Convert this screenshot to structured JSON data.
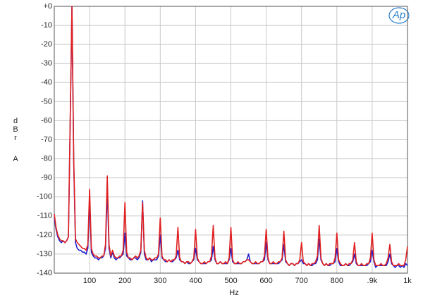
{
  "chart_data": {
    "type": "line",
    "x_label": "Hz",
    "y_label": "dBr A",
    "logo": "Ap",
    "xlim": [
      0,
      1000
    ],
    "ylim": [
      -140,
      0
    ],
    "grid": true,
    "xticks": [
      100,
      200,
      300,
      400,
      500,
      600,
      700,
      800,
      {
        "value": 900,
        "label": ".9k"
      },
      {
        "value": 1000,
        "label": "1k"
      }
    ],
    "yticks": [
      {
        "value": 0,
        "label": "+0"
      },
      -10,
      -20,
      -30,
      -40,
      -50,
      -60,
      -70,
      -80,
      -90,
      -100,
      -110,
      -120,
      -130,
      -140
    ],
    "x": [
      0,
      5,
      10,
      15,
      20,
      25,
      30,
      35,
      40,
      45,
      50,
      55,
      60,
      65,
      70,
      75,
      80,
      85,
      90,
      95,
      100,
      105,
      110,
      115,
      120,
      125,
      130,
      135,
      140,
      145,
      150,
      155,
      160,
      165,
      170,
      175,
      180,
      185,
      190,
      195,
      200,
      205,
      210,
      215,
      220,
      225,
      230,
      235,
      240,
      245,
      250,
      255,
      260,
      265,
      270,
      275,
      280,
      285,
      290,
      295,
      300,
      305,
      310,
      315,
      320,
      325,
      330,
      335,
      340,
      345,
      350,
      355,
      360,
      365,
      370,
      375,
      380,
      385,
      390,
      395,
      400,
      405,
      410,
      415,
      420,
      425,
      430,
      435,
      440,
      445,
      450,
      455,
      460,
      465,
      470,
      475,
      480,
      485,
      490,
      495,
      500,
      505,
      510,
      515,
      520,
      525,
      530,
      535,
      540,
      545,
      550,
      555,
      560,
      565,
      570,
      575,
      580,
      585,
      590,
      595,
      600,
      605,
      610,
      615,
      620,
      625,
      630,
      635,
      640,
      645,
      650,
      655,
      660,
      665,
      670,
      675,
      680,
      685,
      690,
      695,
      700,
      705,
      710,
      715,
      720,
      725,
      730,
      735,
      740,
      745,
      750,
      755,
      760,
      765,
      770,
      775,
      780,
      785,
      790,
      795,
      800,
      805,
      810,
      815,
      820,
      825,
      830,
      835,
      840,
      845,
      850,
      855,
      860,
      865,
      870,
      875,
      880,
      885,
      890,
      895,
      900,
      905,
      910,
      915,
      920,
      925,
      930,
      935,
      940,
      945,
      950,
      955,
      960,
      965,
      970,
      975,
      980,
      985,
      990,
      995,
      1000
    ],
    "series": [
      {
        "color": "#2020d0",
        "values": [
          -111,
          -117,
          -121,
          -123,
          -124,
          -123,
          -124,
          -123,
          -121,
          -62,
          0,
          -82,
          -124,
          -127,
          -128,
          -128,
          -129,
          -129,
          -130,
          -127,
          -102,
          -129,
          -131,
          -132,
          -132,
          -133,
          -132,
          -132,
          -131,
          -127,
          -96,
          -127,
          -132,
          -129,
          -132,
          -133,
          -132,
          -132,
          -131,
          -130,
          -119,
          -131,
          -132,
          -133,
          -133,
          -132,
          -132,
          -133,
          -132,
          -129,
          -102,
          -130,
          -133,
          -133,
          -132,
          -134,
          -133,
          -133,
          -133,
          -131,
          -120,
          -132,
          -133,
          -134,
          -134,
          -133,
          -134,
          -134,
          -133,
          -132,
          -128,
          -133,
          -134,
          -134,
          -135,
          -134,
          -135,
          -135,
          -134,
          -133,
          -127,
          -133,
          -134,
          -135,
          -135,
          -135,
          -135,
          -134,
          -134,
          -133,
          -126,
          -133,
          -135,
          -135,
          -134,
          -135,
          -135,
          -135,
          -135,
          -133,
          -127,
          -134,
          -135,
          -135,
          -135,
          -135,
          -135,
          -134,
          -134,
          -133,
          -130,
          -134,
          -135,
          -135,
          -135,
          -135,
          -135,
          -134,
          -134,
          -133,
          -124,
          -133,
          -135,
          -135,
          -135,
          -135,
          -135,
          -135,
          -134,
          -133,
          -125,
          -134,
          -135,
          -136,
          -135,
          -135,
          -136,
          -135,
          -135,
          -134,
          -133,
          -135,
          -135,
          -136,
          -135,
          -136,
          -136,
          -135,
          -135,
          -133,
          -122,
          -133,
          -135,
          -136,
          -135,
          -136,
          -136,
          -135,
          -135,
          -134,
          -127,
          -134,
          -136,
          -136,
          -136,
          -135,
          -136,
          -136,
          -135,
          -134,
          -130,
          -135,
          -136,
          -136,
          -136,
          -136,
          -136,
          -136,
          -135,
          -134,
          -128,
          -134,
          -137,
          -136,
          -136,
          -136,
          -136,
          -136,
          -136,
          -134,
          -130,
          -135,
          -136,
          -137,
          -136,
          -136,
          -137,
          -136,
          -137,
          -135,
          -136
        ]
      },
      {
        "color": "#e02020",
        "values": [
          -109,
          -116,
          -120,
          -122,
          -123,
          -123,
          -124,
          -123,
          -121,
          -60,
          0,
          -80,
          -122,
          -124,
          -125,
          -126,
          -127,
          -127,
          -128,
          -125,
          -96,
          -127,
          -130,
          -131,
          -131,
          -132,
          -132,
          -131,
          -131,
          -125,
          -89,
          -125,
          -131,
          -128,
          -131,
          -132,
          -132,
          -131,
          -131,
          -128,
          -103,
          -129,
          -132,
          -132,
          -133,
          -132,
          -131,
          -132,
          -131,
          -128,
          -103,
          -128,
          -132,
          -133,
          -132,
          -133,
          -133,
          -132,
          -132,
          -130,
          -111,
          -131,
          -133,
          -133,
          -134,
          -133,
          -134,
          -133,
          -133,
          -131,
          -116,
          -132,
          -134,
          -134,
          -135,
          -134,
          -134,
          -135,
          -134,
          -132,
          -117,
          -132,
          -134,
          -135,
          -135,
          -134,
          -135,
          -134,
          -134,
          -131,
          -115,
          -132,
          -135,
          -135,
          -134,
          -135,
          -135,
          -134,
          -135,
          -132,
          -116,
          -133,
          -135,
          -135,
          -134,
          -135,
          -135,
          -134,
          -134,
          -133,
          -133,
          -134,
          -135,
          -135,
          -134,
          -135,
          -135,
          -134,
          -134,
          -131,
          -117,
          -132,
          -135,
          -135,
          -134,
          -135,
          -135,
          -134,
          -134,
          -132,
          -118,
          -133,
          -135,
          -136,
          -135,
          -135,
          -136,
          -135,
          -135,
          -133,
          -124,
          -134,
          -135,
          -136,
          -135,
          -136,
          -135,
          -135,
          -134,
          -131,
          -115,
          -132,
          -135,
          -136,
          -135,
          -136,
          -135,
          -135,
          -135,
          -132,
          -119,
          -133,
          -135,
          -136,
          -136,
          -135,
          -136,
          -135,
          -135,
          -133,
          -124,
          -134,
          -136,
          -136,
          -135,
          -136,
          -136,
          -135,
          -135,
          -132,
          -119,
          -133,
          -136,
          -136,
          -136,
          -135,
          -136,
          -136,
          -135,
          -132,
          -125,
          -134,
          -136,
          -136,
          -136,
          -135,
          -136,
          -136,
          -136,
          -133,
          -126
        ]
      }
    ]
  }
}
